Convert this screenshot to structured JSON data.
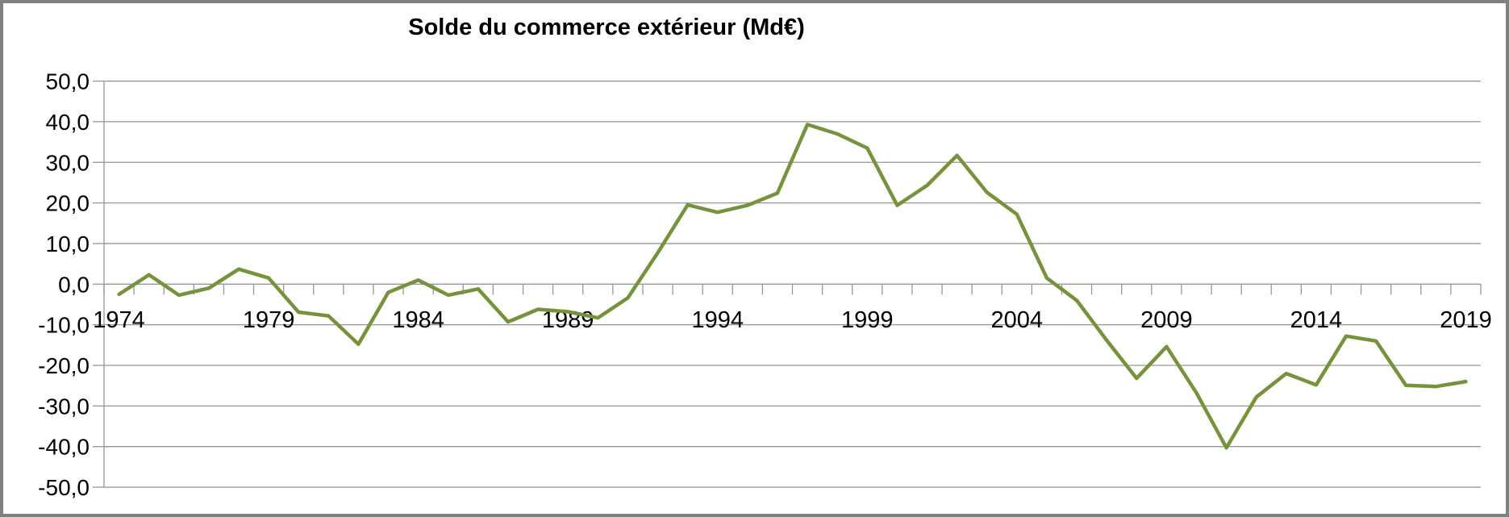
{
  "title": "Solde du commerce extérieur (Md€)",
  "frame": {
    "border_color": "#7f7f7f",
    "background_color": "#ffffff"
  },
  "chart_data": {
    "type": "line",
    "title": "Solde du commerce extérieur (Md€)",
    "series_name": "Solde du commerce extérieur",
    "x": [
      1974,
      1975,
      1976,
      1977,
      1978,
      1979,
      1980,
      1981,
      1982,
      1983,
      1984,
      1985,
      1986,
      1987,
      1988,
      1989,
      1990,
      1991,
      1992,
      1993,
      1994,
      1995,
      1996,
      1997,
      1998,
      1999,
      2000,
      2001,
      2002,
      2003,
      2004,
      2005,
      2006,
      2007,
      2008,
      2009,
      2010,
      2011,
      2012,
      2013,
      2014,
      2015,
      2016,
      2017,
      2018,
      2019
    ],
    "values": [
      -2.5,
      2.3,
      -2.7,
      -1.0,
      3.7,
      1.5,
      -6.9,
      -7.8,
      -14.8,
      -2.0,
      1.0,
      -2.7,
      -1.2,
      -9.3,
      -6.2,
      -6.8,
      -8.3,
      -3.4,
      7.7,
      19.5,
      17.7,
      19.4,
      22.4,
      39.3,
      37.0,
      33.5,
      19.4,
      24.3,
      31.7,
      22.6,
      17.2,
      1.5,
      -4.0,
      -13.8,
      -23.2,
      -15.4,
      -26.8,
      -40.3,
      -27.8,
      -22.0,
      -24.8,
      -12.8,
      -14.0,
      -24.9,
      -25.2,
      -24.0
    ],
    "ylim": [
      -50,
      50
    ],
    "y_tick_step": 10,
    "y_tick_labels": [
      "50,0",
      "40,0",
      "30,0",
      "20,0",
      "10,0",
      "0,0",
      "-10,0",
      "-20,0",
      "-30,0",
      "-40,0",
      "-50,0"
    ],
    "y_tick_values": [
      50,
      40,
      30,
      20,
      10,
      0,
      -10,
      -20,
      -30,
      -40,
      -50
    ],
    "x_tick_labels": [
      "1974",
      "1979",
      "1984",
      "1989",
      "1994",
      "1999",
      "2004",
      "2009",
      "2014",
      "2019"
    ],
    "x_label_every": 5,
    "grid": true,
    "legend_position": "none",
    "decimal_separator": ",",
    "line_color": "#76933C",
    "grid_color": "#969696",
    "axis_color": "#969696",
    "text_color": "#000000"
  }
}
